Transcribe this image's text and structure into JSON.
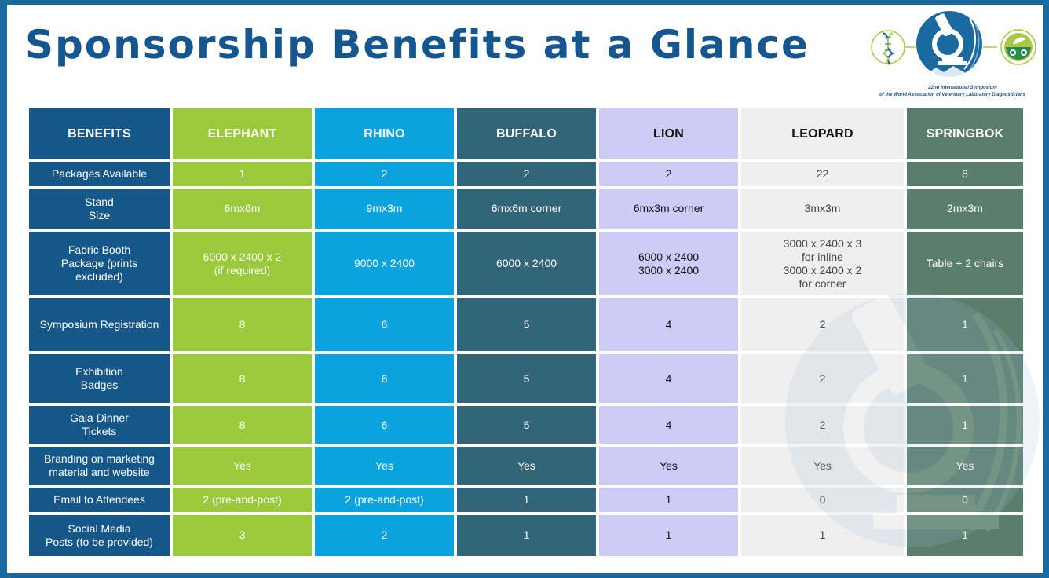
{
  "page": {
    "title": "Sponsorship Benefits at a Glance",
    "logo_line1": "22nd International Symposium",
    "logo_line2": "of the World Association of Veterinary Laboratory Diagnosticians",
    "colors": {
      "frame": "#1a6aa0",
      "title": "#14568d",
      "benefits": "#16578a",
      "elephant": "#9ac93b",
      "rhino": "#0ba3df",
      "buffalo": "#336578",
      "lion": "#cfcbf7",
      "leopard": "#efefef",
      "springbok": "#5a7e6c"
    },
    "icons": [
      "dna-icon",
      "microscope-icon",
      "paw-icon",
      "leaf-icon",
      "microscope-watermark-icon"
    ]
  },
  "table": {
    "headers": [
      "BENEFITS",
      "ELEPHANT",
      "RHINO",
      "BUFFALO",
      "LION",
      "LEOPARD",
      "SPRINGBOK"
    ],
    "rows": [
      [
        "Packages Available",
        "1",
        "2",
        "2",
        "2",
        "22",
        "8"
      ],
      [
        "Stand\nSize",
        "6mx6m",
        "9mx3m",
        "6mx6m corner",
        "6mx3m corner",
        "3mx3m",
        "2mx3m"
      ],
      [
        "Fabric Booth\nPackage (prints\nexcluded)",
        "6000 x 2400 x 2\n(if required)",
        "9000 x 2400",
        "6000 x 2400",
        "6000 x 2400\n3000 x 2400",
        "3000 x 2400 x 3\nfor inline\n3000 x 2400 x 2\nfor corner",
        "Table + 2 chairs"
      ],
      [
        "Symposium Registration",
        "8",
        "6",
        "5",
        "4",
        "2",
        "1"
      ],
      [
        "Exhibition\nBadges",
        "8",
        "6",
        "5",
        "4",
        "2",
        "1"
      ],
      [
        "Gala Dinner\nTickets",
        "8",
        "6",
        "5",
        "4",
        "2",
        "1"
      ],
      [
        "Branding on marketing\nmaterial and website",
        "Yes",
        "Yes",
        "Yes",
        "Yes",
        "Yes",
        "Yes"
      ],
      [
        "Email to Attendees",
        "2 (pre-and-post)",
        "2 (pre-and-post)",
        "1",
        "1",
        "0",
        "0"
      ],
      [
        "Social Media\nPosts (to be provided)",
        "3",
        "2",
        "1",
        "1",
        "1",
        "1"
      ]
    ]
  }
}
